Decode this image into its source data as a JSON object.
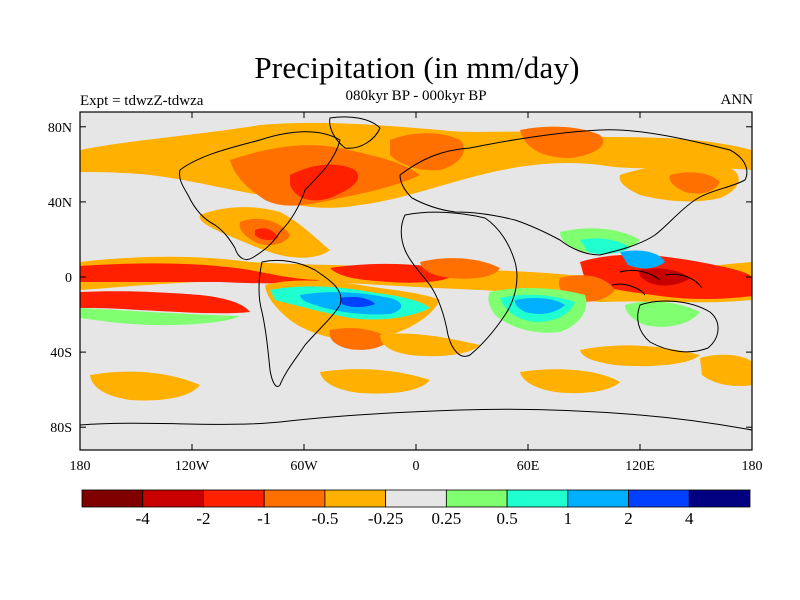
{
  "title": "Precipitation (in mm/day)",
  "subtitle": "080kyr BP - 000kyr BP",
  "left_string": "Expt = tdwzZ-tdwza",
  "right_string": "ANN",
  "lon_ticks": [
    "180",
    "120W",
    "60W",
    "0",
    "60E",
    "120E",
    "180"
  ],
  "lat_ticks": [
    "80N",
    "40N",
    "0",
    "40S",
    "80S"
  ],
  "colorbar": {
    "colors": [
      "#800000",
      "#c80000",
      "#ff2000",
      "#ff7000",
      "#ffb000",
      "#e6e6e6",
      "#80ff70",
      "#20ffd0",
      "#00b0ff",
      "#0040ff",
      "#000080"
    ],
    "labels": [
      "-4",
      "-2",
      "-1",
      "-0.5",
      "-0.25",
      "0.25",
      "0.5",
      "1",
      "2",
      "4"
    ]
  },
  "colors": {
    "land_outline": "#000000",
    "background": "#e6e6e6"
  }
}
